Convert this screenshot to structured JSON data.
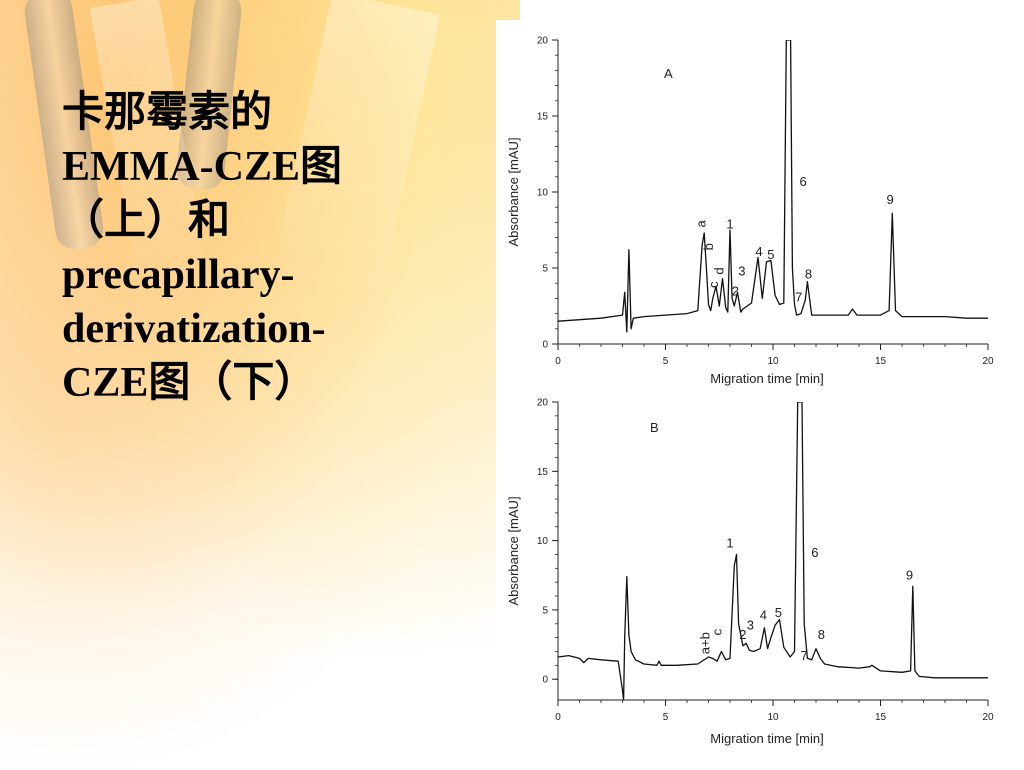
{
  "slide": {
    "title_lines": [
      "卡那霉素的",
      "EMMA-CZE图",
      "（上）和",
      "precapillary-",
      "derivatization-",
      "CZE图（下）"
    ]
  },
  "chart_data": [
    {
      "type": "line",
      "panel_label": "A",
      "xlabel": "Migration time  [min]",
      "ylabel": "Absorbance [mAU]",
      "xlim": [
        0,
        20
      ],
      "ylim": [
        0,
        20
      ],
      "xticks": [
        0,
        5,
        10,
        15,
        20
      ],
      "yticks": [
        0,
        5,
        10,
        15,
        20
      ],
      "tick_labels_x": [
        "0",
        "5",
        "10",
        "15",
        "20"
      ],
      "tick_labels_y": [
        "0",
        "5",
        "10",
        "15",
        "20"
      ],
      "series": [
        {
          "x": [
            0,
            1,
            2,
            3,
            3.1,
            3.2,
            3.3,
            3.4,
            3.5,
            4,
            5,
            6,
            6.5,
            6.7,
            6.8,
            6.9,
            7.0,
            7.1,
            7.2,
            7.35,
            7.5,
            7.65,
            7.8,
            7.9,
            8.0,
            8.1,
            8.2,
            8.35,
            8.5,
            8.6,
            8.8,
            9.0,
            9.3,
            9.5,
            9.7,
            9.9,
            10.1,
            10.3,
            10.5,
            10.62,
            10.68,
            10.74,
            10.82,
            10.9,
            11.0,
            11.1,
            11.3,
            11.5,
            11.6,
            11.8,
            12.5,
            13.5,
            13.7,
            13.9,
            15.0,
            15.4,
            15.55,
            15.7,
            16.0,
            17,
            18,
            19,
            20
          ],
          "y": [
            1.5,
            1.6,
            1.7,
            1.9,
            3.4,
            0.8,
            6.2,
            1.0,
            1.7,
            1.8,
            1.9,
            2.0,
            2.2,
            6.5,
            7.3,
            5.0,
            2.6,
            2.2,
            3.0,
            3.8,
            2.5,
            4.3,
            2.4,
            2.1,
            7.5,
            3.0,
            2.5,
            3.4,
            2.1,
            2.3,
            2.5,
            2.7,
            5.7,
            3.0,
            5.4,
            5.5,
            3.2,
            2.6,
            2.7,
            20,
            20,
            20,
            20,
            5.0,
            2.6,
            1.9,
            2.0,
            2.9,
            4.1,
            1.9,
            1.9,
            1.9,
            2.3,
            1.9,
            1.9,
            2.2,
            8.6,
            2.2,
            1.8,
            1.8,
            1.8,
            1.7,
            1.7
          ]
        }
      ],
      "annotations": [
        {
          "text": "a",
          "x": 6.85,
          "y": 7.9,
          "rotate": true
        },
        {
          "text": "b",
          "x": 7.2,
          "y": 6.4,
          "rotate": true
        },
        {
          "text": "c",
          "x": 7.45,
          "y": 3.9,
          "rotate": true
        },
        {
          "text": "d",
          "x": 7.7,
          "y": 4.8,
          "rotate": true
        },
        {
          "text": "1",
          "x": 8.0,
          "y": 7.6,
          "rotate": false
        },
        {
          "text": "2",
          "x": 8.25,
          "y": 3.2,
          "rotate": false
        },
        {
          "text": "3",
          "x": 8.55,
          "y": 4.5,
          "rotate": false
        },
        {
          "text": "4",
          "x": 9.35,
          "y": 5.8,
          "rotate": false
        },
        {
          "text": "5",
          "x": 9.9,
          "y": 5.6,
          "rotate": false
        },
        {
          "text": "6",
          "x": 11.4,
          "y": 10.4,
          "rotate": false
        },
        {
          "text": "7",
          "x": 11.2,
          "y": 2.8,
          "rotate": false
        },
        {
          "text": "8",
          "x": 11.65,
          "y": 4.3,
          "rotate": false
        },
        {
          "text": "9",
          "x": 15.45,
          "y": 9.2,
          "rotate": false
        }
      ]
    },
    {
      "type": "line",
      "panel_label": "B",
      "xlabel": "Migration time [min]",
      "ylabel": "Absorbance [mAU]",
      "xlim": [
        0,
        20
      ],
      "ylim": [
        -1.5,
        20
      ],
      "xticks": [
        0,
        5,
        10,
        15,
        20
      ],
      "yticks": [
        0,
        5,
        10,
        15,
        20
      ],
      "tick_labels_x": [
        "0",
        "5",
        "10",
        "15",
        "20"
      ],
      "tick_labels_y": [
        "0",
        "5",
        "10",
        "15",
        "20"
      ],
      "series": [
        {
          "x": [
            0,
            0.5,
            1.0,
            1.2,
            1.4,
            2.0,
            2.8,
            3.0,
            3.05,
            3.1,
            3.2,
            3.3,
            3.4,
            3.6,
            4.0,
            4.6,
            4.7,
            4.8,
            5.5,
            6.5,
            7.0,
            7.2,
            7.4,
            7.6,
            7.8,
            8.0,
            8.2,
            8.3,
            8.4,
            8.6,
            8.75,
            8.9,
            9.1,
            9.4,
            9.6,
            9.75,
            9.9,
            10.1,
            10.3,
            10.5,
            10.8,
            11.0,
            11.15,
            11.25,
            11.35,
            11.45,
            11.6,
            11.8,
            12.0,
            12.2,
            12.4,
            13.0,
            14.0,
            14.5,
            14.6,
            15.0,
            16.0,
            16.4,
            16.5,
            16.6,
            16.8,
            17.5,
            18.5,
            20
          ],
          "y": [
            1.6,
            1.7,
            1.5,
            1.2,
            1.5,
            1.4,
            1.3,
            -0.8,
            -1.5,
            3.0,
            7.4,
            3.2,
            2.0,
            1.4,
            1.1,
            1.0,
            1.3,
            1.0,
            1.0,
            1.1,
            1.6,
            1.5,
            1.3,
            2.0,
            1.4,
            1.5,
            8.2,
            9.0,
            4.0,
            2.4,
            2.6,
            2.1,
            2.0,
            2.2,
            3.7,
            2.2,
            3.0,
            3.9,
            4.3,
            2.3,
            1.6,
            2.0,
            20,
            20,
            20,
            4.0,
            1.5,
            1.4,
            2.2,
            1.5,
            1.1,
            0.9,
            0.8,
            0.9,
            1.0,
            0.6,
            0.5,
            0.6,
            6.7,
            0.6,
            0.2,
            0.1,
            0.1,
            0.1
          ]
        }
      ],
      "annotations": [
        {
          "text": "a+b",
          "x": 7.05,
          "y": 2.6,
          "rotate": true
        },
        {
          "text": "c",
          "x": 7.6,
          "y": 3.4,
          "rotate": true
        },
        {
          "text": "1",
          "x": 8.0,
          "y": 9.5,
          "rotate": false
        },
        {
          "text": "2",
          "x": 8.6,
          "y": 2.9,
          "rotate": false
        },
        {
          "text": "3",
          "x": 8.95,
          "y": 3.6,
          "rotate": false
        },
        {
          "text": "4",
          "x": 9.55,
          "y": 4.3,
          "rotate": false
        },
        {
          "text": "5",
          "x": 10.25,
          "y": 4.5,
          "rotate": false
        },
        {
          "text": "6",
          "x": 11.95,
          "y": 8.8,
          "rotate": false
        },
        {
          "text": "7",
          "x": 11.45,
          "y": 1.4,
          "rotate": false
        },
        {
          "text": "8",
          "x": 12.25,
          "y": 2.9,
          "rotate": false
        },
        {
          "text": "9",
          "x": 16.35,
          "y": 7.2,
          "rotate": false
        }
      ]
    }
  ]
}
